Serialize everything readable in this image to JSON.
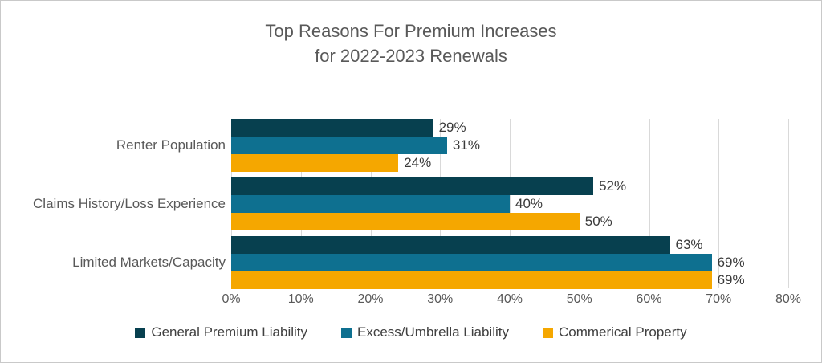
{
  "page": {
    "background": "#ffffff",
    "border_color": "#c9c9c9"
  },
  "colors": {
    "title_text": "#595959",
    "category_text": "#595959",
    "axis_text": "#595959",
    "data_label_text": "#3a3a3a",
    "legend_text": "#404040",
    "gridline": "#d9d9d9"
  },
  "chart_data": {
    "type": "bar",
    "orientation": "horizontal",
    "title": "Top Reasons For Premium Increases for 2022-2023 Renewals",
    "title_lines": [
      "Top Reasons For Premium Increases",
      "for 2022-2023 Renewals"
    ],
    "categories": [
      "Renter Population",
      "Claims History/Loss Experience",
      "Limited Markets/Capacity"
    ],
    "series": [
      {
        "name": "General Premium Liability",
        "color": "#07404f",
        "values": [
          29,
          52,
          63
        ]
      },
      {
        "name": "Excess/Umbrella Liability",
        "color": "#0e7090",
        "values": [
          31,
          40,
          69
        ]
      },
      {
        "name": "Commerical Property",
        "color": "#f5a700",
        "values": [
          24,
          50,
          69
        ]
      }
    ],
    "value_suffix": "%",
    "data_labels": true,
    "data_label_texts": [
      [
        "29%",
        "52%",
        "63%"
      ],
      [
        "31%",
        "40%",
        "69%"
      ],
      [
        "24%",
        "50%",
        "69%"
      ]
    ],
    "x_axis": {
      "min": 0,
      "max": 80,
      "tick_step": 10,
      "tick_labels": [
        "0%",
        "10%",
        "20%",
        "30%",
        "40%",
        "50%",
        "60%",
        "70%",
        "80%"
      ]
    },
    "grid": true,
    "legend_position": "bottom"
  }
}
